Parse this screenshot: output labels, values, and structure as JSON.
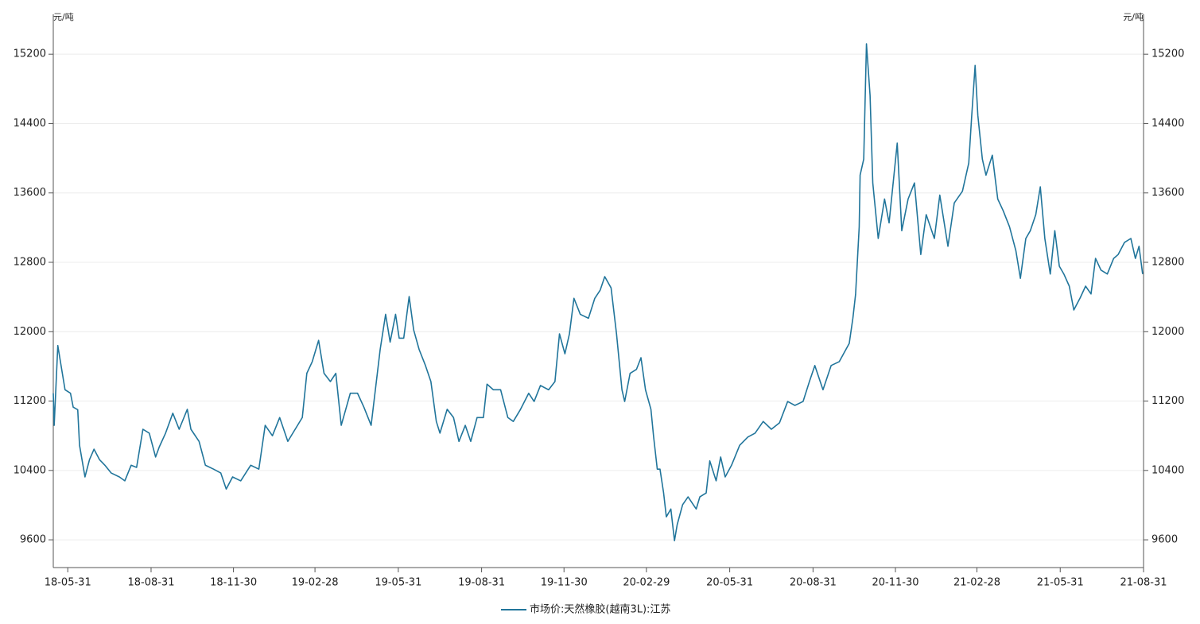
{
  "chart_data": {
    "type": "line",
    "y_label": "元/吨",
    "y2_label": "元/吨",
    "xlim": [
      "18-05-15",
      "21-08-31"
    ],
    "xticks": [
      "18-05-31",
      "18-08-31",
      "18-11-30",
      "19-02-28",
      "19-05-31",
      "19-08-31",
      "19-11-30",
      "20-02-29",
      "20-05-31",
      "20-08-31",
      "20-11-30",
      "21-02-28",
      "21-05-31",
      "21-08-31"
    ],
    "ylim": [
      9280,
      15660
    ],
    "yticks": [
      9600,
      10400,
      11200,
      12000,
      12800,
      13600,
      14400,
      15200
    ],
    "y2lim": [
      9280,
      15660
    ],
    "y2ticks": [
      9600,
      10400,
      11200,
      12000,
      12800,
      13600,
      14400,
      15200
    ],
    "grid": true,
    "legend": "bottom",
    "x": [
      "18-05-15",
      "18-05-16",
      "18-05-20",
      "18-05-25",
      "18-05-28",
      "18-06-03",
      "18-06-06",
      "18-06-11",
      "18-06-13",
      "18-06-19",
      "18-06-24",
      "18-06-29",
      "18-07-05",
      "18-07-11",
      "18-07-18",
      "18-07-27",
      "18-08-02",
      "18-08-09",
      "18-08-15",
      "18-08-22",
      "18-08-29",
      "18-09-05",
      "18-09-09",
      "18-09-16",
      "18-09-24",
      "18-10-01",
      "18-10-10",
      "18-10-14",
      "18-10-23",
      "18-10-30",
      "18-11-08",
      "18-11-16",
      "18-11-22",
      "18-11-29",
      "18-12-08",
      "18-12-19",
      "18-12-28",
      "19-01-04",
      "19-01-12",
      "19-01-20",
      "19-01-29",
      "19-02-14",
      "19-02-19",
      "19-02-25",
      "19-03-04",
      "19-03-10",
      "19-03-17",
      "19-03-23",
      "19-03-29",
      "19-04-08",
      "19-04-16",
      "19-04-23",
      "19-05-01",
      "19-05-11",
      "19-05-17",
      "19-05-22",
      "19-05-28",
      "19-06-01",
      "19-06-06",
      "19-06-12",
      "19-06-17",
      "19-06-23",
      "19-06-30",
      "19-07-06",
      "19-07-12",
      "19-07-16",
      "19-07-24",
      "19-07-31",
      "19-08-06",
      "19-08-13",
      "19-08-19",
      "19-08-26",
      "19-09-02",
      "19-09-06",
      "19-09-13",
      "19-09-21",
      "19-09-29",
      "19-10-05",
      "19-10-13",
      "19-10-22",
      "19-10-28",
      "19-11-04",
      "19-11-13",
      "19-11-20",
      "19-11-25",
      "19-12-01",
      "19-12-06",
      "19-12-11",
      "19-12-18",
      "19-12-27",
      "20-01-03",
      "20-01-09",
      "20-01-14",
      "20-01-21",
      "20-01-27",
      "20-02-02",
      "20-02-05",
      "20-02-11",
      "20-02-18",
      "20-02-23",
      "20-02-28",
      "20-03-05",
      "20-03-08",
      "20-03-12",
      "20-03-15",
      "20-03-19",
      "20-03-22",
      "20-03-27",
      "20-03-31",
      "20-04-03",
      "20-04-09",
      "20-04-15",
      "20-04-24",
      "20-04-28",
      "20-05-05",
      "20-05-09",
      "20-05-16",
      "20-05-21",
      "20-05-26",
      "20-06-02",
      "20-06-11",
      "20-06-20",
      "20-06-28",
      "20-07-07",
      "20-07-16",
      "20-07-25",
      "20-08-03",
      "20-08-11",
      "20-08-20",
      "20-08-27",
      "20-09-02",
      "20-09-11",
      "20-09-20",
      "20-09-29",
      "20-10-10",
      "20-10-14",
      "20-10-17",
      "20-10-21",
      "20-10-22",
      "20-10-26",
      "20-10-29",
      "20-11-02",
      "20-11-05",
      "20-11-11",
      "20-11-18",
      "20-11-23",
      "20-12-02",
      "20-12-07",
      "20-12-14",
      "20-12-21",
      "20-12-28",
      "21-01-03",
      "21-01-12",
      "21-01-18",
      "21-01-27",
      "21-02-03",
      "21-02-12",
      "21-02-19",
      "21-02-22",
      "21-02-26",
      "21-03-01",
      "21-03-06",
      "21-03-10",
      "21-03-17",
      "21-03-23",
      "21-03-29",
      "21-04-05",
      "21-04-12",
      "21-04-17",
      "21-04-23",
      "21-04-28",
      "21-05-04",
      "21-05-09",
      "21-05-14",
      "21-05-20",
      "21-05-25",
      "21-05-30",
      "21-06-04",
      "21-06-10",
      "21-06-15",
      "21-06-22",
      "21-06-28",
      "21-07-04",
      "21-07-09",
      "21-07-15",
      "21-07-22",
      "21-07-29",
      "21-08-03",
      "21-08-10",
      "21-08-17",
      "21-08-22",
      "21-08-26",
      "21-08-30"
    ],
    "series": [
      {
        "name": "市场价:天然橡胶(越南3L):江苏",
        "color": "#21759b",
        "values": [
          11290,
          10920,
          11840,
          11520,
          11330,
          11290,
          11130,
          11100,
          10690,
          10325,
          10525,
          10645,
          10525,
          10460,
          10370,
          10325,
          10280,
          10460,
          10435,
          10875,
          10830,
          10555,
          10670,
          10830,
          11060,
          10875,
          11105,
          10875,
          10735,
          10460,
          10415,
          10370,
          10185,
          10325,
          10280,
          10460,
          10415,
          10920,
          10800,
          11010,
          10735,
          11010,
          11520,
          11655,
          11900,
          11520,
          11425,
          11520,
          10920,
          11290,
          11290,
          11130,
          10920,
          11795,
          12200,
          11880,
          12200,
          11925,
          11925,
          12405,
          12020,
          11795,
          11610,
          11425,
          10965,
          10830,
          11105,
          11010,
          10735,
          10920,
          10735,
          11010,
          11010,
          11395,
          11330,
          11330,
          11010,
          10965,
          11105,
          11290,
          11195,
          11380,
          11330,
          11425,
          11975,
          11745,
          11975,
          12385,
          12200,
          12155,
          12385,
          12480,
          12635,
          12505,
          11975,
          11330,
          11195,
          11520,
          11565,
          11700,
          11330,
          11105,
          10785,
          10415,
          10415,
          10140,
          9865,
          9955,
          9590,
          9775,
          10005,
          10095,
          9955,
          10095,
          10140,
          10510,
          10280,
          10555,
          10325,
          10460,
          10690,
          10785,
          10830,
          10965,
          10875,
          10950,
          11195,
          11150,
          11195,
          11425,
          11610,
          11330,
          11610,
          11655,
          11865,
          12155,
          12430,
          13210,
          13805,
          13990,
          15320,
          14725,
          13715,
          13075,
          13530,
          13255,
          14175,
          13165,
          13530,
          13715,
          12890,
          13350,
          13075,
          13575,
          12985,
          13485,
          13620,
          13945,
          14450,
          15070,
          14495,
          13990,
          13805,
          14035,
          13530,
          13395,
          13210,
          12935,
          12615,
          13075,
          13165,
          13350,
          13670,
          13075,
          12665,
          13165,
          12755,
          12665,
          12525,
          12250,
          12390,
          12525,
          12435,
          12845,
          12710,
          12665,
          12845,
          12890,
          13030,
          13075,
          12845,
          12985,
          12665
        ]
      }
    ]
  }
}
